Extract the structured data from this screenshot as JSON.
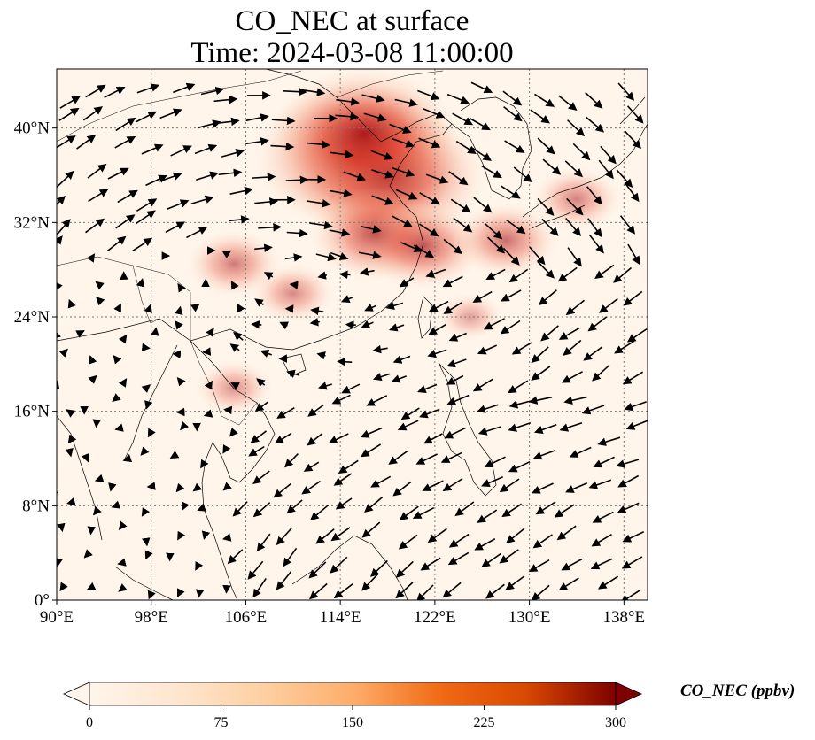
{
  "title_line1": "CO_NEC at surface",
  "title_line2": "Time: 2024-03-08 11:00:00",
  "map": {
    "extent": {
      "lon_min": 90,
      "lon_max": 140,
      "lat_min": 0,
      "lat_max": 45
    },
    "lon_ticks": [
      {
        "value": 90,
        "label": "90°E"
      },
      {
        "value": 98,
        "label": "98°E"
      },
      {
        "value": 106,
        "label": "106°E"
      },
      {
        "value": 114,
        "label": "114°E"
      },
      {
        "value": 122,
        "label": "122°E"
      },
      {
        "value": 130,
        "label": "130°E"
      },
      {
        "value": 138,
        "label": "138°E"
      }
    ],
    "lat_ticks": [
      {
        "value": 0,
        "label": "0°"
      },
      {
        "value": 8,
        "label": "8°N"
      },
      {
        "value": 16,
        "label": "16°N"
      },
      {
        "value": 24,
        "label": "24°N"
      },
      {
        "value": 32,
        "label": "32°N"
      },
      {
        "value": 40,
        "label": "40°N"
      }
    ],
    "gridlines": true,
    "colormap": [
      "#fff5eb",
      "#fdd9b5",
      "#fdae6b",
      "#f16913",
      "#d94801",
      "#a50f15",
      "#67000d"
    ],
    "plumes": [
      {
        "lon": 115.5,
        "lat": 37.5,
        "value": 300
      },
      {
        "lon": 118.0,
        "lat": 36.0,
        "value": 280
      },
      {
        "lon": 116.0,
        "lat": 39.5,
        "value": 260
      },
      {
        "lon": 117.0,
        "lat": 31.0,
        "value": 160
      },
      {
        "lon": 121.0,
        "lat": 30.0,
        "value": 140
      },
      {
        "lon": 128.0,
        "lat": 30.5,
        "value": 110
      },
      {
        "lon": 134.0,
        "lat": 34.0,
        "value": 80
      },
      {
        "lon": 105.0,
        "lat": 28.5,
        "value": 90
      },
      {
        "lon": 110.0,
        "lat": 26.0,
        "value": 70
      },
      {
        "lon": 105.0,
        "lat": 18.0,
        "value": 60
      },
      {
        "lon": 125.0,
        "lat": 24.0,
        "value": 40
      }
    ]
  },
  "colorbar": {
    "min": 0,
    "max": 300,
    "ticks": [
      {
        "value": 0,
        "label": "0"
      },
      {
        "value": 75,
        "label": "75"
      },
      {
        "value": 150,
        "label": "150"
      },
      {
        "value": 225,
        "label": "225"
      },
      {
        "value": 300,
        "label": "300"
      }
    ],
    "label": "CO_NEC (ppbv)",
    "extend": "both"
  }
}
